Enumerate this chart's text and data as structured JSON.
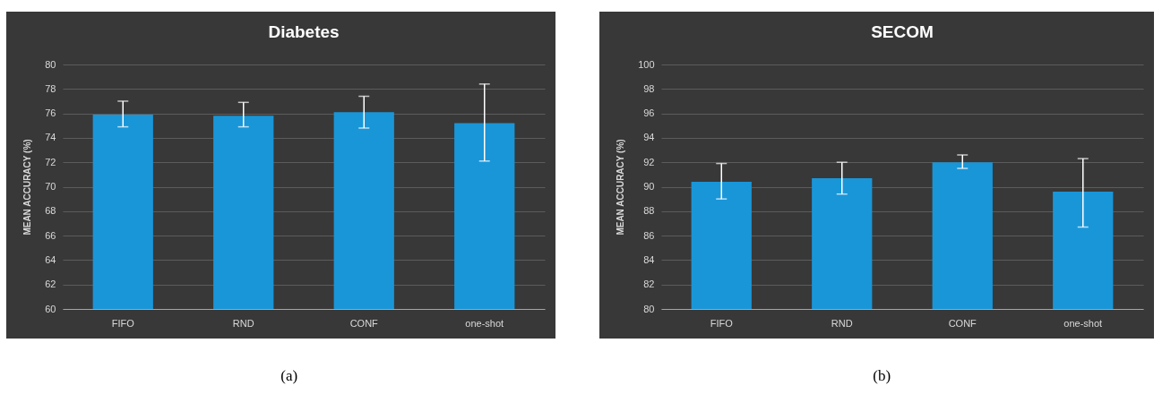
{
  "chart_data": [
    {
      "type": "bar",
      "title": "Diabetes",
      "ylabel": "MEAN ACCURACY (%)",
      "categories": [
        "FIFO",
        "RND",
        "CONF",
        "one-shot"
      ],
      "values": [
        75.9,
        75.8,
        76.1,
        75.2
      ],
      "color": "#1996d8",
      "errors": [
        [
          74.9,
          77.0
        ],
        [
          74.9,
          76.9
        ],
        [
          74.8,
          77.4
        ],
        [
          72.1,
          78.4
        ]
      ],
      "ylim": [
        60,
        80
      ],
      "yticks": [
        60,
        62,
        64,
        66,
        68,
        70,
        72,
        74,
        76,
        78,
        80
      ],
      "grid": "y",
      "annotations": [
        "(a)"
      ]
    },
    {
      "type": "bar",
      "title": "SECOM",
      "ylabel": "MEAN ACCURACY (%)",
      "categories": [
        "FIFO",
        "RND",
        "CONF",
        "one-shot"
      ],
      "values": [
        90.4,
        90.7,
        92.0,
        89.6
      ],
      "color": "#1996d8",
      "errors": [
        [
          89.0,
          91.9
        ],
        [
          89.4,
          92.0
        ],
        [
          91.5,
          92.6
        ],
        [
          86.7,
          92.3
        ]
      ],
      "ylim": [
        80,
        100
      ],
      "yticks": [
        80,
        82,
        84,
        86,
        88,
        90,
        92,
        94,
        96,
        98,
        100
      ],
      "grid": "y",
      "annotations": [
        "(b)"
      ]
    }
  ]
}
